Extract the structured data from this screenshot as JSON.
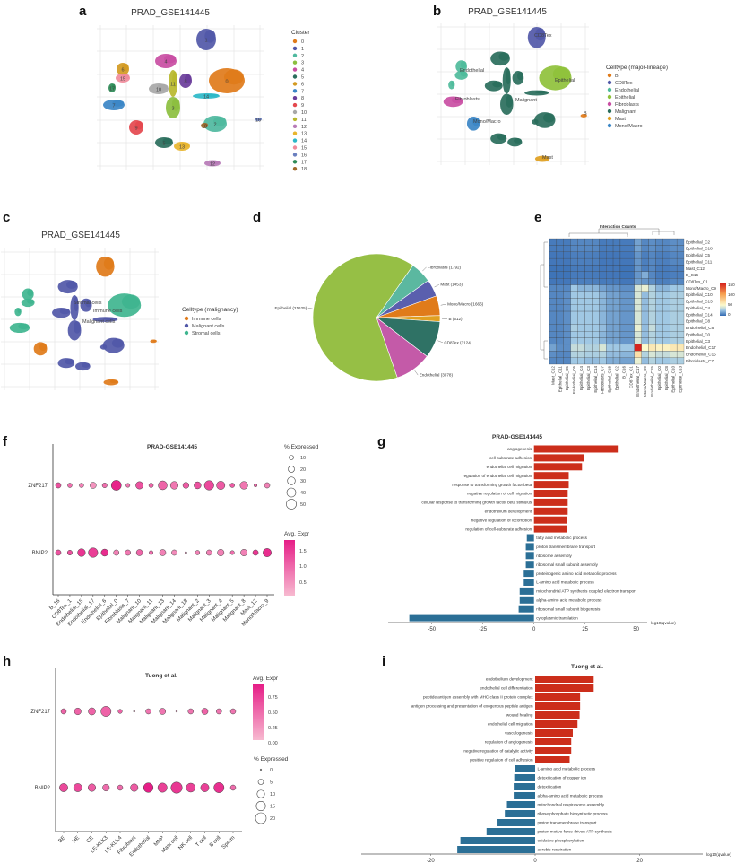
{
  "panel_labels": [
    "a",
    "b",
    "c",
    "d",
    "e",
    "f",
    "g",
    "h",
    "i"
  ],
  "chart_data": [
    {
      "panel": "a",
      "type": "scatter",
      "title": "PRAD_GSE141445",
      "legend_title": "Cluster",
      "grid": true,
      "clusters": [
        {
          "id": "0",
          "color": "#e07b1a"
        },
        {
          "id": "1",
          "color": "#5158a8"
        },
        {
          "id": "2",
          "color": "#4fb99f"
        },
        {
          "id": "3",
          "color": "#8cbf3f"
        },
        {
          "id": "4",
          "color": "#c94ea3"
        },
        {
          "id": "5",
          "color": "#2a6e5c"
        },
        {
          "id": "6",
          "color": "#d39a22"
        },
        {
          "id": "7",
          "color": "#3b86c6"
        },
        {
          "id": "8",
          "color": "#6a3d9a"
        },
        {
          "id": "9",
          "color": "#e4484e"
        },
        {
          "id": "10",
          "color": "#a8a8a8"
        },
        {
          "id": "11",
          "color": "#b8b82e"
        },
        {
          "id": "12",
          "color": "#b77bb7"
        },
        {
          "id": "13",
          "color": "#e8b52e"
        },
        {
          "id": "14",
          "color": "#2cb8c8"
        },
        {
          "id": "15",
          "color": "#f08b9b"
        },
        {
          "id": "16",
          "color": "#6a7fbf"
        },
        {
          "id": "17",
          "color": "#2e8b57"
        },
        {
          "id": "18",
          "color": "#a0692a"
        }
      ]
    },
    {
      "panel": "b",
      "type": "scatter",
      "title": "PRAD_GSE141445",
      "legend_title": "Celltype (major-lineage)",
      "grid": true,
      "groups": [
        {
          "name": "B",
          "color": "#e07b1a"
        },
        {
          "name": "CD8Tex",
          "color": "#5158a8"
        },
        {
          "name": "Endothelial",
          "color": "#4fbb9b"
        },
        {
          "name": "Epithelial",
          "color": "#8fc13b"
        },
        {
          "name": "Fibroblasts",
          "color": "#c94ea3"
        },
        {
          "name": "Malignant",
          "color": "#2a6e5c"
        },
        {
          "name": "Mast",
          "color": "#e0a020"
        },
        {
          "name": "Mono/Macro",
          "color": "#3b86c6"
        }
      ],
      "cluster_to_group": [
        "Epithelial",
        "CD8Tex",
        "Malignant",
        "Malignant",
        "Malignant",
        "Malignant",
        "Endothelial",
        "Fibroblasts",
        "Malignant",
        "Mono/Macro",
        "Malignant",
        "Malignant",
        "Mast",
        "Malignant",
        "Malignant",
        "Endothelial",
        "B",
        "Endothelial",
        "Malignant"
      ]
    },
    {
      "panel": "c",
      "type": "scatter",
      "title": "PRAD_GSE141445",
      "legend_title": "Celltype (malignancy)",
      "grid": true,
      "groups": [
        {
          "name": "Immune cells",
          "color": "#e07b1a"
        },
        {
          "name": "Malignant cells",
          "color": "#5158a8"
        },
        {
          "name": "Stromal cells",
          "color": "#3fb58f"
        }
      ],
      "cluster_to_group": [
        "Stromal cells",
        "Immune cells",
        "Malignant cells",
        "Malignant cells",
        "Malignant cells",
        "Malignant cells",
        "Stromal cells",
        "Stromal cells",
        "Malignant cells",
        "Immune cells",
        "Malignant cells",
        "Malignant cells",
        "Immune cells",
        "Malignant cells",
        "Malignant cells",
        "Stromal cells",
        "Immune cells",
        "Stromal cells",
        "Malignant cells"
      ]
    },
    {
      "panel": "d",
      "type": "pie",
      "slices": [
        {
          "name": "Fibroblasts",
          "value": 1792,
          "label": "Fibroblasts (1792)",
          "color": "#5bb8a0"
        },
        {
          "name": "Mast",
          "value": 1453,
          "label": "Mast (1453)",
          "color": "#5a5fae"
        },
        {
          "name": "Mono/Macro",
          "value": 1666,
          "label": "Mono/Macro (1666)",
          "color": "#e07b1a"
        },
        {
          "name": "B",
          "value": 512,
          "label": "B (512)",
          "color": "#e0a020"
        },
        {
          "name": "CD8Tex",
          "value": 3124,
          "label": "CD8Tex (3124)",
          "color": "#2f7265"
        },
        {
          "name": "Endothelial",
          "value": 3078,
          "label": "Endothelial (3078)",
          "color": "#c45aa8"
        },
        {
          "name": "Epithelial",
          "value": 21625,
          "label": "Epithelial (21625)",
          "color": "#96bf45"
        }
      ]
    },
    {
      "panel": "e",
      "type": "heatmap",
      "title": "Interaction Counts",
      "rows": [
        "Epithelial_C2",
        "Epithelial_C18",
        "Epithelial_C5",
        "Epithelial_C11",
        "Mast_C12",
        "B_C16",
        "CD8Tex_C1",
        "Mono/Macro_C9",
        "Epithelial_C10",
        "Epithelial_C13",
        "Epithelial_C4",
        "Epithelial_C14",
        "Epithelial_C8",
        "Endothelial_C6",
        "Epithelial_C0",
        "Epithelial_C3",
        "Endothelial_C17",
        "Endothelial_C15",
        "Fibroblasts_C7"
      ],
      "columns": [
        "Mast_C12",
        "Epithelial_C11",
        "Epithelial_C5",
        "Endothelial_C6",
        "Epithelial_C4",
        "Epithelial_C3",
        "Epithelial_C14",
        "Fibroblasts_C7",
        "Epithelial_C18",
        "Epithelial_C2",
        "B_C16",
        "CD8Tex_C1",
        "Endothelial_C17",
        "Mono/Macro_C9",
        "Endothelial_C15",
        "Epithelial_C0",
        "Epithelial_C8",
        "Epithelial_C10",
        "Epithelial_C13"
      ],
      "colorbar_ticks": [
        "150",
        "100",
        "50",
        "0"
      ],
      "range": [
        0,
        150
      ],
      "values": [
        [
          5,
          5,
          5,
          8,
          8,
          8,
          8,
          5,
          5,
          5,
          5,
          5,
          15,
          8,
          10,
          8,
          8,
          10,
          10
        ],
        [
          5,
          5,
          5,
          8,
          8,
          8,
          8,
          5,
          5,
          5,
          5,
          5,
          15,
          8,
          10,
          8,
          8,
          10,
          10
        ],
        [
          4,
          4,
          4,
          6,
          6,
          6,
          6,
          4,
          4,
          4,
          4,
          4,
          12,
          6,
          8,
          6,
          6,
          8,
          8
        ],
        [
          4,
          4,
          4,
          6,
          6,
          6,
          6,
          4,
          4,
          4,
          4,
          4,
          12,
          6,
          8,
          6,
          6,
          8,
          8
        ],
        [
          3,
          3,
          3,
          5,
          5,
          5,
          5,
          4,
          4,
          4,
          3,
          3,
          12,
          6,
          8,
          5,
          5,
          6,
          6
        ],
        [
          3,
          3,
          3,
          5,
          5,
          5,
          5,
          4,
          4,
          4,
          3,
          3,
          12,
          18,
          8,
          5,
          5,
          6,
          6
        ],
        [
          4,
          4,
          4,
          6,
          6,
          6,
          6,
          5,
          5,
          5,
          4,
          4,
          14,
          12,
          10,
          6,
          6,
          8,
          8
        ],
        [
          8,
          8,
          8,
          25,
          20,
          20,
          20,
          15,
          12,
          12,
          10,
          10,
          40,
          45,
          30,
          20,
          20,
          25,
          25
        ],
        [
          8,
          8,
          10,
          25,
          25,
          25,
          25,
          20,
          15,
          15,
          12,
          12,
          40,
          22,
          30,
          25,
          25,
          28,
          28
        ],
        [
          8,
          8,
          10,
          25,
          25,
          25,
          25,
          20,
          15,
          15,
          12,
          12,
          40,
          22,
          30,
          25,
          25,
          28,
          28
        ],
        [
          8,
          8,
          10,
          25,
          25,
          25,
          25,
          20,
          15,
          15,
          12,
          12,
          40,
          22,
          30,
          25,
          25,
          28,
          28
        ],
        [
          8,
          8,
          10,
          25,
          25,
          25,
          25,
          20,
          15,
          15,
          12,
          12,
          40,
          22,
          30,
          25,
          25,
          28,
          28
        ],
        [
          8,
          8,
          10,
          25,
          25,
          25,
          25,
          20,
          15,
          15,
          12,
          12,
          40,
          22,
          30,
          25,
          25,
          28,
          28
        ],
        [
          8,
          8,
          10,
          28,
          25,
          25,
          25,
          22,
          15,
          15,
          12,
          12,
          45,
          22,
          35,
          25,
          25,
          28,
          28
        ],
        [
          8,
          8,
          10,
          25,
          25,
          25,
          25,
          20,
          15,
          15,
          12,
          12,
          40,
          22,
          30,
          25,
          25,
          28,
          28
        ],
        [
          8,
          8,
          10,
          25,
          25,
          25,
          25,
          20,
          15,
          15,
          12,
          12,
          40,
          22,
          30,
          25,
          25,
          28,
          28
        ],
        [
          15,
          10,
          10,
          35,
          35,
          30,
          30,
          40,
          25,
          25,
          25,
          25,
          150,
          50,
          60,
          55,
          55,
          60,
          60
        ],
        [
          10,
          8,
          8,
          30,
          30,
          28,
          28,
          30,
          22,
          22,
          20,
          20,
          65,
          30,
          40,
          35,
          35,
          40,
          40
        ],
        [
          8,
          8,
          8,
          25,
          25,
          22,
          22,
          25,
          18,
          18,
          15,
          15,
          45,
          22,
          30,
          25,
          25,
          28,
          28
        ]
      ]
    },
    {
      "panel": "f",
      "type": "scatter",
      "subtype": "dotplot",
      "title": "PRAD-GSE141445",
      "genes": [
        "ZNF217",
        "BNIP2"
      ],
      "x": [
        "B_16",
        "CD8Tex_1",
        "Endothelial_15",
        "Endothelial_17",
        "Endothelial_6",
        "Epithelial_0",
        "Fibroblasts_7",
        "Malignant_10",
        "Malignant_11",
        "Malignant_13",
        "Malignant_14",
        "Malignant_18",
        "Malignant_2",
        "Malignant_3",
        "Malignant_4",
        "Malignant_5",
        "Malignant_8",
        "Mast_12",
        "Mono/Macro_9"
      ],
      "pct_expressed": [
        [
          15,
          10,
          10,
          20,
          12,
          50,
          8,
          28,
          10,
          40,
          30,
          18,
          25,
          45,
          35,
          10,
          30,
          5,
          15
        ],
        [
          15,
          12,
          30,
          45,
          25,
          15,
          15,
          20,
          8,
          20,
          15,
          2,
          10,
          15,
          22,
          8,
          22,
          15,
          35
        ]
      ],
      "avg_expr": [
        [
          1.3,
          1.0,
          0.8,
          0.6,
          1.0,
          1.8,
          0.9,
          1.3,
          1.1,
          1.1,
          0.9,
          1.2,
          1.3,
          1.4,
          1.2,
          1.2,
          0.9,
          1.1,
          0.8
        ],
        [
          1.3,
          1.3,
          1.6,
          1.5,
          1.7,
          0.8,
          0.9,
          1.1,
          1.0,
          0.8,
          0.7,
          1.0,
          0.8,
          0.8,
          0.8,
          1.0,
          0.8,
          1.6,
          1.7
        ]
      ],
      "size_legend_title": "% Expressed",
      "size_legend": [
        "10",
        "20",
        "30",
        "40",
        "50"
      ],
      "color_legend_title": "Avg. Expr",
      "color_ticks": [
        "1.5",
        "1.0",
        "0.5"
      ],
      "color_range": [
        0.2,
        1.85
      ]
    },
    {
      "panel": "g",
      "type": "bar",
      "orientation": "horizontal",
      "title": "PRAD-GSE141445",
      "xlabel": "log10(qvalue)",
      "xlim": [
        -65,
        55
      ],
      "xticks": [
        "-50",
        "-25",
        "0",
        "25",
        "50"
      ],
      "categories": [
        "angiogenesis",
        "cell-substrate adhesion",
        "endothelial cell migration",
        "regulation of endothelial cell migration",
        "response to transforming growth factor beta",
        "negative regulation of cell migration",
        "cellular response to transforming growth factor beta stimulus",
        "endothelium development",
        "negative regulation of locomotion",
        "regulation of cell-substrate adhesion",
        "fatty acid metabolic process",
        "proton transmembrane transport",
        "ribosome assembly",
        "ribosomal small subunit assembly",
        "proteinogenic amino acid metabolic process",
        "L-amino acid metabolic process",
        "mitochondrial ATP synthesis coupled electron transport",
        "alpha-amino acid metabolic process",
        "ribosomal small subunit biogenesis",
        "cytoplasmic translation"
      ],
      "values": [
        41,
        24.5,
        23.5,
        17,
        17,
        16.5,
        16.5,
        16.5,
        16,
        16,
        -3.5,
        -4,
        -4,
        -4,
        -5,
        -5,
        -7,
        -7,
        -7.5,
        -61
      ],
      "colors": {
        "up": "#cc2e1b",
        "down": "#2b6f96"
      }
    },
    {
      "panel": "h",
      "type": "scatter",
      "subtype": "dotplot",
      "title": "Tuong et al.",
      "genes": [
        "ZNF217",
        "BNIP2"
      ],
      "x": [
        "BE",
        "HE",
        "CE",
        "LE-KLK3",
        "LE-KLK4",
        "Fibroblast",
        "Endothelial",
        "MNP",
        "Mast cell",
        "NK cell",
        "T cell",
        "B cell",
        "Sperm"
      ],
      "pct_expressed": [
        [
          5,
          8,
          9,
          18,
          3,
          0.5,
          5,
          7,
          0.5,
          5,
          7,
          5,
          5
        ],
        [
          12,
          12,
          10,
          8,
          5,
          10,
          16,
          15,
          22,
          14,
          12,
          18,
          5
        ]
      ],
      "avg_expr": [
        [
          0.5,
          0.5,
          0.5,
          0.5,
          0.5,
          0.3,
          0.4,
          0.4,
          0.2,
          0.4,
          0.5,
          0.4,
          0.4
        ],
        [
          0.65,
          0.65,
          0.55,
          0.45,
          0.45,
          0.55,
          0.9,
          0.7,
          0.75,
          0.7,
          0.7,
          0.8,
          0.45
        ]
      ],
      "size_legend_title": "% Expressed",
      "size_legend": [
        "0",
        "5",
        "10",
        "15",
        "20"
      ],
      "color_legend_title": "Avg. Expr",
      "color_ticks": [
        "0.75",
        "0.50",
        "0.25",
        "0.00"
      ],
      "color_range": [
        0,
        0.9
      ]
    },
    {
      "panel": "i",
      "type": "bar",
      "orientation": "horizontal",
      "title": "Tuong et al.",
      "xlabel": "log10(qvalue)",
      "xlim": [
        -33,
        33
      ],
      "xticks": [
        "-20",
        "0",
        "20"
      ],
      "categories": [
        "endothelium development",
        "endothelial cell differentiation",
        "peptide antigen assembly with MHC class II protein complex",
        "antigen processing and presentation of exogenous peptide antigen",
        "wound healing",
        "endothelial cell migration",
        "vasculogenesis",
        "regulation of angiogenesis",
        "negative regulation of catalytic activity",
        "positive regulation of cell adhesion",
        "L-amino acid metabolic process",
        "detoxification of copper ion",
        "detoxification",
        "alpha-amino acid metabolic process",
        "mitochondrial respirasome assembly",
        "ribose phosphate biosynthetic process",
        "proton transmembrane transport",
        "proton motive force-driven ATP synthesis",
        "oxidative phosphorylation",
        "aerobic respiration"
      ],
      "values": [
        11.2,
        11.2,
        8.6,
        8.6,
        8.5,
        8.1,
        7.2,
        6.9,
        6.9,
        6.6,
        -3.8,
        -4,
        -4.1,
        -4.1,
        -5.4,
        -5.8,
        -7.2,
        -9.3,
        -14.3,
        -14.9
      ],
      "colors": {
        "up": "#cc2e1b",
        "down": "#2b6f96"
      }
    }
  ]
}
